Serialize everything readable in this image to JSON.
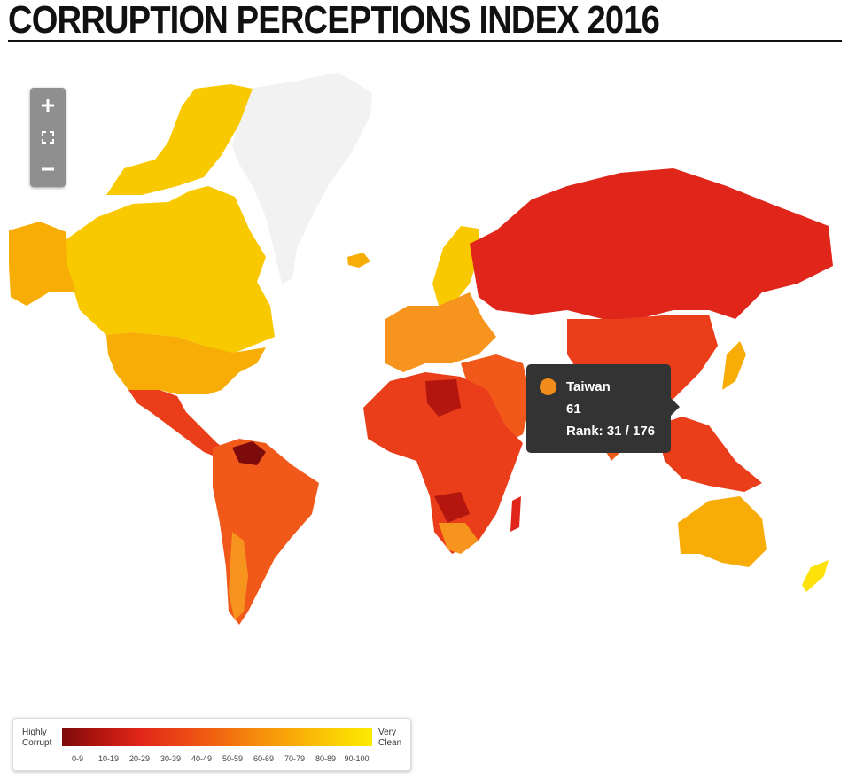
{
  "title": "CORRUPTION PERCEPTIONS INDEX 2016",
  "zoom": {
    "plus_icon": "plus-icon",
    "fit_icon": "fit-icon",
    "minus_icon": "minus-icon"
  },
  "tooltip": {
    "country": "Taiwan",
    "score": "61",
    "rank": "Rank: 31 / 176",
    "color": "#f28c1b"
  },
  "legend": {
    "left_label": "Highly Corrupt",
    "right_label": "Very Clean",
    "ticks": [
      "0-9",
      "10-19",
      "20-29",
      "30-39",
      "40-49",
      "50-59",
      "60-69",
      "70-79",
      "80-89",
      "90-100"
    ]
  },
  "colors": {
    "s0": "#7d0b0b",
    "s1": "#b3150f",
    "s2": "#e0261a",
    "s3": "#ea3d1a",
    "s4": "#f0591a",
    "s5": "#f7941d",
    "s6": "#f28c1b",
    "s7": "#f7ad06",
    "s8": "#f9c900",
    "s9": "#fde10a",
    "nodata": "#f2f2f2"
  }
}
